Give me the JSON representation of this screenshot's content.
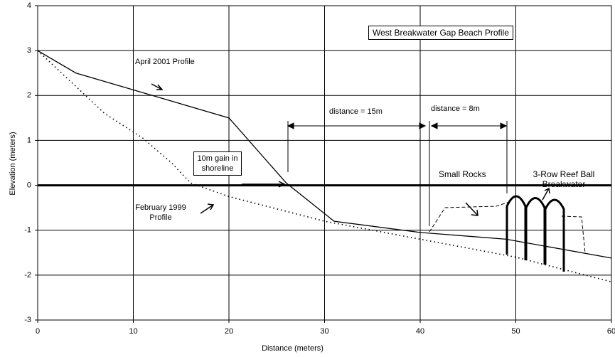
{
  "chart_data": {
    "type": "line",
    "title": "West Breakwater Gap Beach Profile",
    "x_label": "Distance (meters)",
    "y_label": "Elevation (meters)",
    "xlim": [
      0,
      60
    ],
    "xticks": [
      0,
      10,
      20,
      30,
      40,
      50,
      60
    ],
    "ylim": [
      -3,
      4
    ],
    "yticks": [
      -3,
      -2,
      -1,
      0,
      1,
      2,
      3,
      4
    ],
    "grid": true,
    "series": [
      {
        "name": "April 2001 Profile",
        "color": "#000000",
        "style": "solid",
        "x": [
          0,
          4,
          20,
          26,
          31,
          40,
          49,
          60
        ],
        "values": [
          3,
          2.5,
          1.5,
          0.05,
          -0.8,
          -1.05,
          -1.2,
          -1.62
        ]
      },
      {
        "name": "February 1999 Profile",
        "color": "#000000",
        "style": "dotted",
        "x": [
          0,
          7,
          11,
          14,
          16,
          20,
          30,
          40,
          50,
          60
        ],
        "values": [
          3,
          1.6,
          1.05,
          0.5,
          0.05,
          -0.25,
          -0.8,
          -1.2,
          -1.6,
          -2.15
        ]
      }
    ],
    "annotations": [
      "10m gain in shoreline",
      "distance = 15m",
      "distance = 8m",
      "Small Rocks",
      "3-Row Reef Ball Breakwater"
    ]
  }
}
